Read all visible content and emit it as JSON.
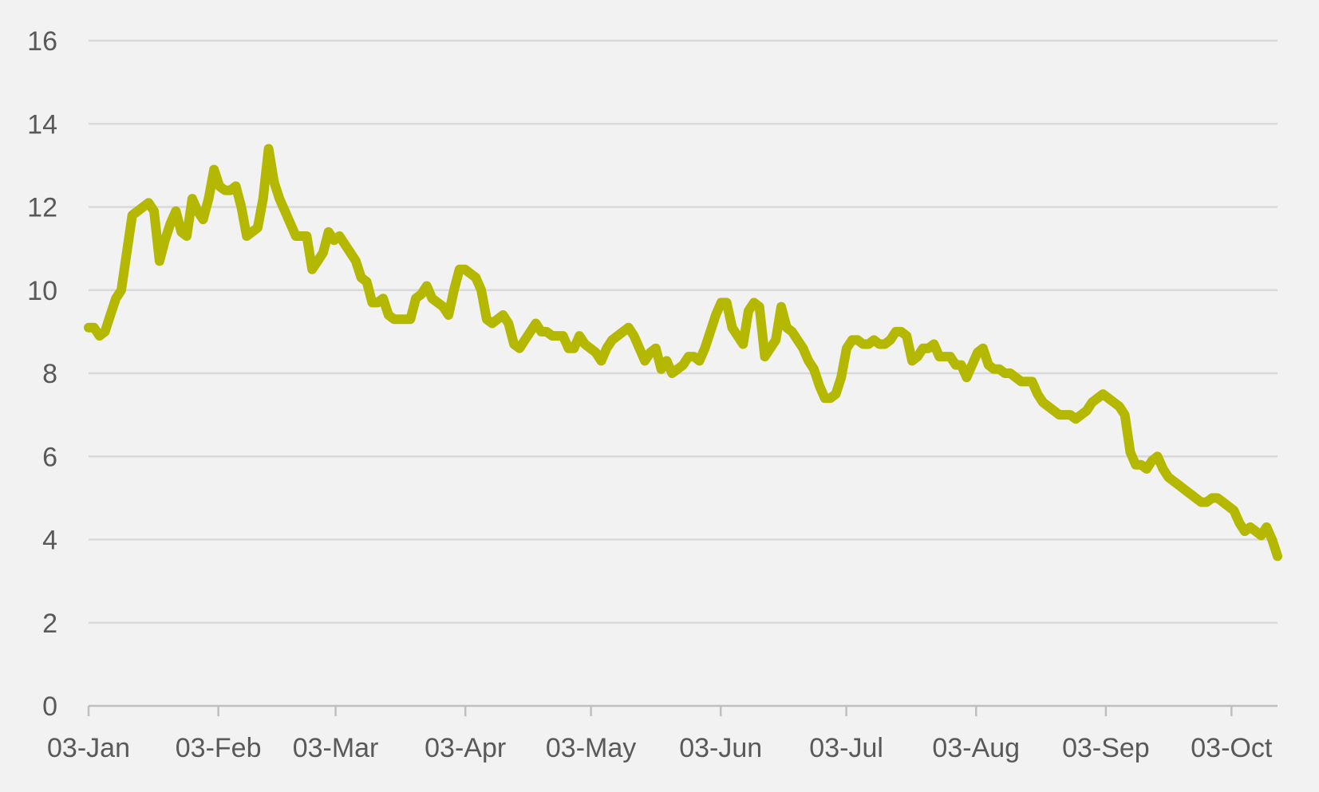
{
  "chart_data": {
    "type": "line",
    "title": "",
    "xlabel": "",
    "ylabel": "",
    "ylim": [
      0,
      16
    ],
    "yticks": [
      "0",
      "2",
      "4",
      "6",
      "8",
      "10",
      "12",
      "14",
      "16"
    ],
    "xticks": [
      "03-Jan",
      "03-Feb",
      "03-Mar",
      "03-Apr",
      "03-May",
      "03-Jun",
      "03-Jul",
      "03-Aug",
      "03-Sep",
      "03-Oct"
    ],
    "grid": "horizontal",
    "legend": "none",
    "colors": {
      "line": "#b5b800",
      "grid": "#d9d9d9",
      "axis": "#bfbfbf",
      "text": "#595959",
      "background": "#f2f2f2"
    },
    "x_start": "03-Jan",
    "x_end": "14-Oct",
    "series": [
      {
        "values": [
          9.1,
          9.1,
          8.9,
          9.0,
          9.4,
          9.8,
          10.0,
          10.9,
          11.8,
          11.9,
          12.0,
          12.1,
          11.9,
          10.7,
          11.2,
          11.6,
          11.9,
          11.4,
          11.3,
          12.2,
          11.9,
          11.7,
          12.2,
          12.9,
          12.5,
          12.4,
          12.4,
          12.5,
          12.0,
          11.3,
          11.4,
          11.5,
          12.2,
          13.4,
          12.6,
          12.2,
          11.9,
          11.6,
          11.3,
          11.3,
          11.3,
          10.5,
          10.7,
          10.9,
          11.4,
          11.2,
          11.3,
          11.1,
          10.9,
          10.7,
          10.3,
          10.2,
          9.7,
          9.7,
          9.8,
          9.4,
          9.3,
          9.3,
          9.3,
          9.3,
          9.8,
          9.9,
          10.1,
          9.8,
          9.7,
          9.6,
          9.4,
          10.0,
          10.5,
          10.5,
          10.4,
          10.3,
          10.0,
          9.3,
          9.2,
          9.3,
          9.4,
          9.2,
          8.7,
          8.6,
          8.8,
          9.0,
          9.2,
          9.0,
          9.0,
          8.9,
          8.9,
          8.9,
          8.6,
          8.6,
          8.9,
          8.7,
          8.6,
          8.5,
          8.3,
          8.6,
          8.8,
          8.9,
          9.0,
          9.1,
          8.9,
          8.6,
          8.3,
          8.5,
          8.6,
          8.1,
          8.3,
          8.0,
          8.1,
          8.2,
          8.4,
          8.4,
          8.3,
          8.6,
          9.0,
          9.4,
          9.7,
          9.7,
          9.1,
          8.9,
          8.7,
          9.5,
          9.7,
          9.6,
          8.4,
          8.6,
          8.8,
          9.6,
          9.1,
          9.0,
          8.8,
          8.6,
          8.3,
          8.1,
          7.7,
          7.4,
          7.4,
          7.5,
          7.9,
          8.6,
          8.8,
          8.8,
          8.7,
          8.7,
          8.8,
          8.7,
          8.7,
          8.8,
          9.0,
          9.0,
          8.9,
          8.3,
          8.4,
          8.6,
          8.6,
          8.7,
          8.4,
          8.4,
          8.4,
          8.2,
          8.2,
          7.9,
          8.2,
          8.5,
          8.6,
          8.2,
          8.1,
          8.1,
          8.0,
          8.0,
          7.9,
          7.8,
          7.8,
          7.8,
          7.5,
          7.3,
          7.2,
          7.1,
          7.0,
          7.0,
          7.0,
          6.9,
          7.0,
          7.1,
          7.3,
          7.4,
          7.5,
          7.4,
          7.3,
          7.2,
          7.0,
          6.1,
          5.8,
          5.8,
          5.7,
          5.9,
          6.0,
          5.7,
          5.5,
          5.4,
          5.3,
          5.2,
          5.1,
          5.0,
          4.9,
          4.9,
          5.0,
          5.0,
          4.9,
          4.8,
          4.7,
          4.4,
          4.2,
          4.3,
          4.2,
          4.1,
          4.3,
          4.0,
          3.6
        ]
      }
    ]
  }
}
